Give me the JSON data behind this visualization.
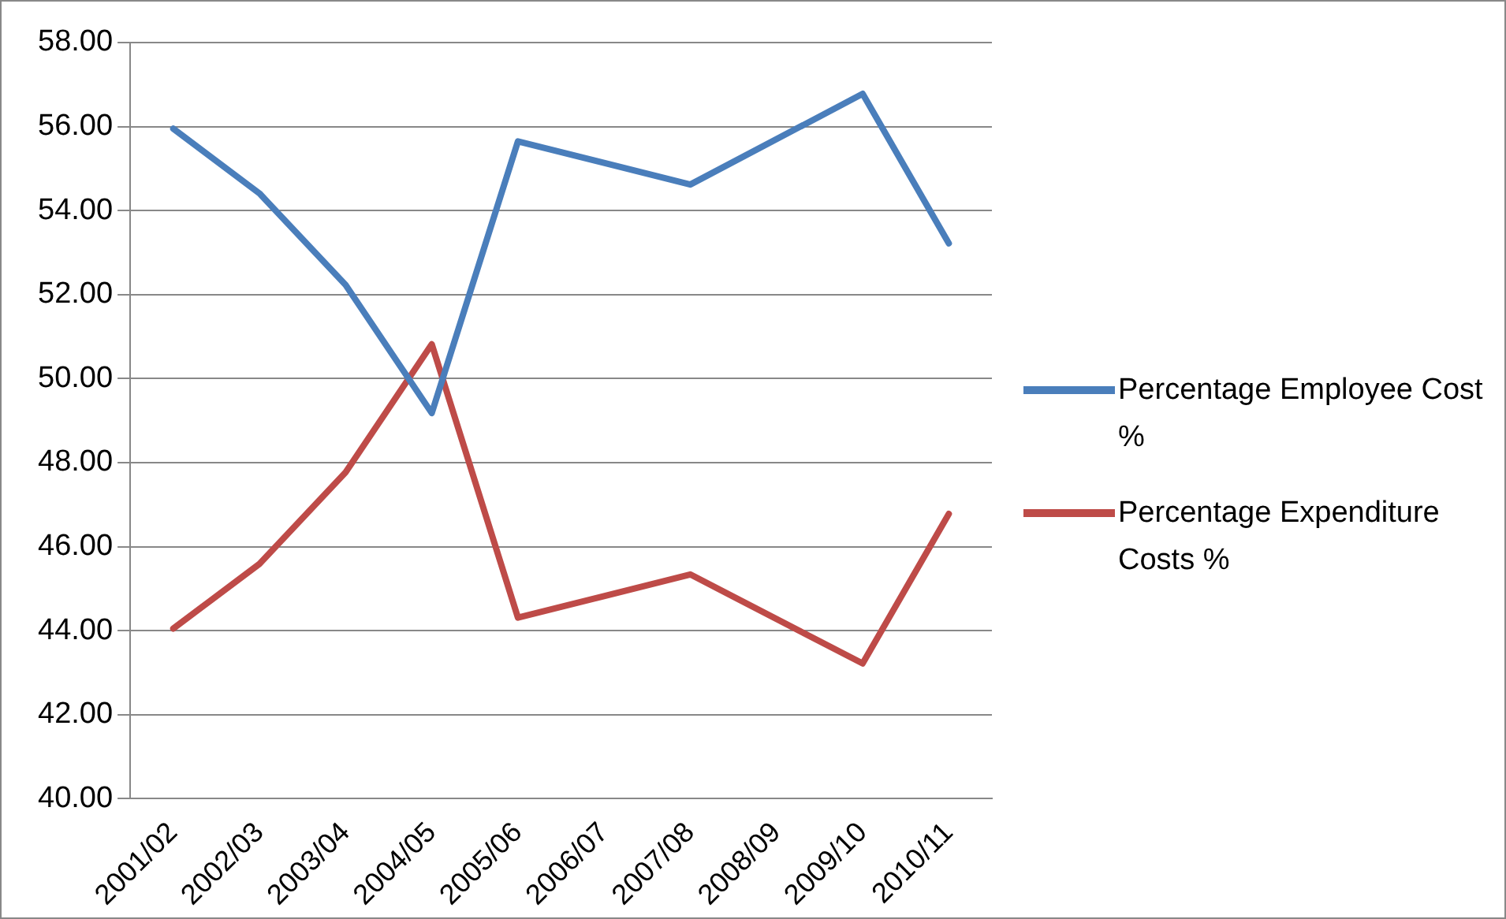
{
  "chart_data": {
    "type": "line",
    "categories": [
      "2001/02",
      "2002/03",
      "2003/04",
      "2004/05",
      "2005/06",
      "2006/07",
      "2007/08",
      "2008/09",
      "2009/10",
      "2010/11"
    ],
    "series": [
      {
        "name": "Percentage Employee Cost %",
        "color": "#4a7ebb",
        "values": [
          55.95,
          54.41,
          52.23,
          49.18,
          55.65,
          null,
          54.62,
          null,
          56.78,
          53.22
        ]
      },
      {
        "name": "Percentage Expenditure Costs %",
        "color": "#be4b48",
        "values": [
          44.05,
          45.59,
          47.77,
          50.82,
          44.31,
          null,
          45.34,
          null,
          43.22,
          46.78
        ]
      }
    ],
    "ylim": [
      40,
      58
    ],
    "yticks": [
      {
        "value": 40,
        "label": "40.00"
      },
      {
        "value": 42,
        "label": "42.00"
      },
      {
        "value": 44,
        "label": "44.00"
      },
      {
        "value": 46,
        "label": "46.00"
      },
      {
        "value": 48,
        "label": "48.00"
      },
      {
        "value": 50,
        "label": "50.00"
      },
      {
        "value": 52,
        "label": "52.00"
      },
      {
        "value": 54,
        "label": "54.00"
      },
      {
        "value": 56,
        "label": "56.00"
      },
      {
        "value": 58,
        "label": "58.00"
      }
    ],
    "grid": "y",
    "legend": "right",
    "marker": "none",
    "line_style": "solid"
  }
}
